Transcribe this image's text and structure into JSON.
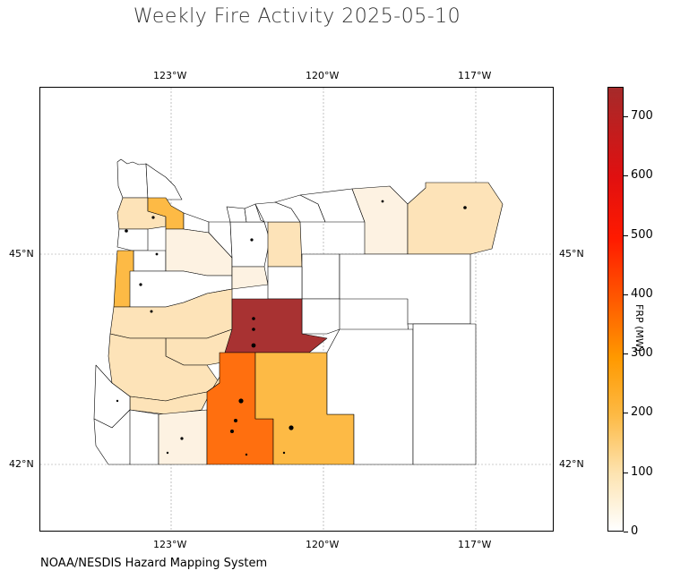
{
  "title": "Weekly Fire Activity 2025-05-10",
  "credit": "NOAA/NESDIS Hazard Mapping System",
  "map": {
    "region": "Oregon counties",
    "longitude_ticks": [
      "123°W",
      "120°W",
      "117°W"
    ],
    "latitude_ticks": [
      "45°N",
      "42°N"
    ],
    "gridlines": true,
    "colors": {
      "very_low": "#fdf2e2",
      "low": "#fde3b8",
      "mid": "#fdba45",
      "high": "#ff6f0f",
      "max": "#a83232",
      "unburned": "#ffffff",
      "outline": "#000000"
    }
  },
  "colorbar": {
    "label": "FRP (MW)",
    "ticks": [
      "0",
      "100",
      "200",
      "300",
      "400",
      "500",
      "600",
      "700"
    ],
    "min": 0,
    "max": 750
  }
}
